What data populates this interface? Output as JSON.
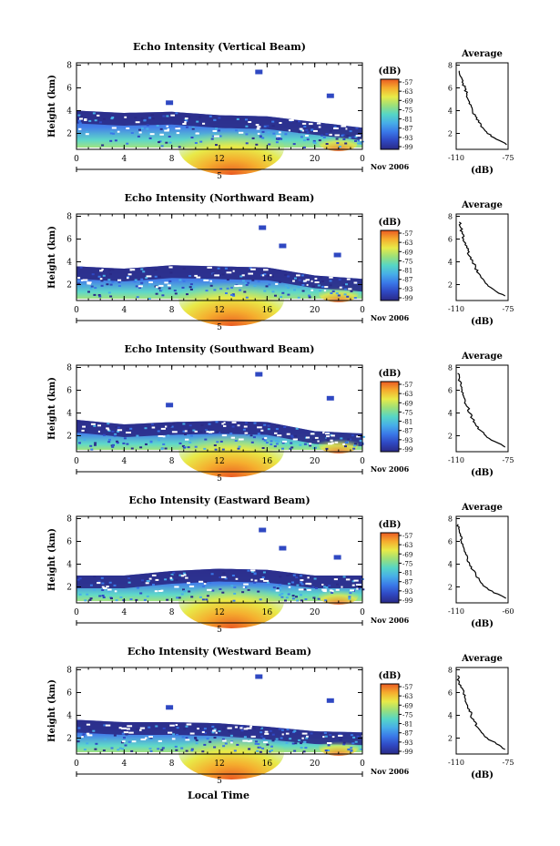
{
  "figure": {
    "xaxis_title": "Local Time",
    "height_label": "Height (km)",
    "units_label": "(dB)",
    "date_tail": "Nov 2006",
    "day_label": "5",
    "colorbar_ticks": [
      "-57",
      "-63",
      "-69",
      "-75",
      "-81",
      "-87",
      "-93",
      "-99"
    ],
    "colorbar_colors": [
      "#2a2a86",
      "#2f48c2",
      "#3a78e8",
      "#47aee8",
      "#56d6c6",
      "#9be07a",
      "#e8ea48",
      "#f5ad2e",
      "#ea5a22"
    ]
  },
  "chart_data": [
    {
      "type": "heatmap",
      "title": "Echo Intensity (Vertical Beam)",
      "ylabel": "Height (km)",
      "x_ticks": [
        "0",
        "4",
        "8",
        "12",
        "16",
        "20",
        "0"
      ],
      "y_ticks": [
        "2",
        "4",
        "6",
        "8"
      ],
      "xlim": [
        0,
        24
      ],
      "ylim": [
        0.6,
        8.2
      ],
      "colorbar": {
        "label": "(dB)",
        "ticks": [
          -57,
          -63,
          -69,
          -75,
          -81,
          -87,
          -93,
          -99
        ]
      },
      "echo_top_km": [
        [
          0,
          4.0
        ],
        [
          4,
          3.8
        ],
        [
          8,
          3.9
        ],
        [
          12,
          3.6
        ],
        [
          16,
          3.5
        ],
        [
          20,
          3.0
        ],
        [
          24,
          2.5
        ]
      ],
      "average_profile": {
        "title": "Average",
        "xlabel": "(dB)",
        "x_ticks": [
          "-110",
          "-75"
        ],
        "xlim": [
          -110,
          -75
        ],
        "y_ticks": [
          "2",
          "4",
          "6",
          "8"
        ],
        "ylim": [
          0.6,
          8.2
        ],
        "height_km": [
          1.0,
          1.5,
          2.0,
          2.5,
          3.0,
          3.5,
          4.0,
          4.5,
          5.0,
          5.5,
          6.0,
          6.5,
          7.0,
          7.5
        ],
        "db": [
          -76,
          -83,
          -89,
          -92,
          -95,
          -97,
          -99,
          -100,
          -102,
          -103,
          -104,
          -106,
          -107,
          -108
        ]
      }
    },
    {
      "type": "heatmap",
      "title": "Echo Intensity (Northward Beam)",
      "ylabel": "Height (km)",
      "x_ticks": [
        "0",
        "4",
        "8",
        "12",
        "16",
        "20",
        "0"
      ],
      "y_ticks": [
        "2",
        "4",
        "6",
        "8"
      ],
      "xlim": [
        0,
        24
      ],
      "ylim": [
        0.6,
        8.2
      ],
      "colorbar": {
        "label": "(dB)",
        "ticks": [
          -57,
          -63,
          -69,
          -75,
          -81,
          -87,
          -93,
          -99
        ]
      },
      "echo_top_km": [
        [
          0,
          3.6
        ],
        [
          4,
          3.4
        ],
        [
          8,
          3.7
        ],
        [
          12,
          3.6
        ],
        [
          16,
          3.5
        ],
        [
          20,
          2.8
        ],
        [
          24,
          2.5
        ]
      ],
      "average_profile": {
        "title": "Average",
        "xlabel": "(dB)",
        "x_ticks": [
          "-110",
          "-75"
        ],
        "xlim": [
          -110,
          -75
        ],
        "y_ticks": [
          "2",
          "4",
          "6",
          "8"
        ],
        "ylim": [
          0.6,
          8.2
        ],
        "height_km": [
          1.0,
          1.5,
          2.0,
          2.5,
          3.0,
          3.5,
          4.0,
          4.5,
          5.0,
          5.5,
          6.0,
          6.5,
          7.0,
          7.5
        ],
        "db": [
          -77,
          -84,
          -89,
          -92,
          -95,
          -97,
          -99,
          -101,
          -102,
          -104,
          -105,
          -106,
          -107,
          -108
        ]
      }
    },
    {
      "type": "heatmap",
      "title": "Echo Intensity (Southward Beam)",
      "ylabel": "Height (km)",
      "x_ticks": [
        "0",
        "4",
        "8",
        "12",
        "16",
        "20",
        "0"
      ],
      "y_ticks": [
        "2",
        "4",
        "6",
        "8"
      ],
      "xlim": [
        0,
        24
      ],
      "ylim": [
        0.6,
        8.2
      ],
      "colorbar": {
        "label": "(dB)",
        "ticks": [
          -57,
          -63,
          -69,
          -75,
          -81,
          -87,
          -93,
          -99
        ]
      },
      "echo_top_km": [
        [
          0,
          3.4
        ],
        [
          4,
          3.0
        ],
        [
          8,
          3.2
        ],
        [
          12,
          3.3
        ],
        [
          16,
          3.2
        ],
        [
          20,
          2.4
        ],
        [
          24,
          2.2
        ]
      ],
      "average_profile": {
        "title": "Average",
        "xlabel": "(dB)",
        "x_ticks": [
          "-110",
          "-75"
        ],
        "xlim": [
          -110,
          -75
        ],
        "y_ticks": [
          "2",
          "4",
          "6",
          "8"
        ],
        "ylim": [
          0.6,
          8.2
        ],
        "height_km": [
          1.0,
          1.5,
          2.0,
          2.5,
          3.0,
          3.5,
          4.0,
          4.5,
          5.0,
          5.5,
          6.0,
          6.5,
          7.0,
          7.5
        ],
        "db": [
          -77,
          -84,
          -90,
          -94,
          -97,
          -99,
          -101,
          -102,
          -104,
          -105,
          -106,
          -107,
          -108,
          -109
        ]
      }
    },
    {
      "type": "heatmap",
      "title": "Echo Intensity (Eastward Beam)",
      "ylabel": "Height (km)",
      "x_ticks": [
        "0",
        "4",
        "8",
        "12",
        "16",
        "20",
        "0"
      ],
      "y_ticks": [
        "2",
        "4",
        "6",
        "8"
      ],
      "xlim": [
        0,
        24
      ],
      "ylim": [
        0.6,
        8.2
      ],
      "colorbar": {
        "label": "(dB)",
        "ticks": [
          -57,
          -63,
          -69,
          -75,
          -81,
          -87,
          -93,
          -99
        ]
      },
      "echo_top_km": [
        [
          0,
          3.0
        ],
        [
          4,
          3.0
        ],
        [
          8,
          3.4
        ],
        [
          12,
          3.6
        ],
        [
          16,
          3.5
        ],
        [
          20,
          3.0
        ],
        [
          24,
          3.0
        ]
      ],
      "average_profile": {
        "title": "Average",
        "xlabel": "(dB)",
        "x_ticks": [
          "-110",
          "-60"
        ],
        "xlim": [
          -110,
          -60
        ],
        "y_ticks": [
          "2",
          "4",
          "6",
          "8"
        ],
        "ylim": [
          0.6,
          8.2
        ],
        "height_km": [
          1.0,
          1.5,
          2.0,
          2.5,
          3.0,
          3.5,
          4.0,
          4.5,
          5.0,
          5.5,
          6.0,
          6.5,
          7.0,
          7.5
        ],
        "db": [
          -62,
          -74,
          -82,
          -87,
          -91,
          -94,
          -97,
          -99,
          -101,
          -103,
          -105,
          -106,
          -107,
          -108
        ]
      }
    },
    {
      "type": "heatmap",
      "title": "Echo Intensity (Westward Beam)",
      "ylabel": "Height (km)",
      "x_ticks": [
        "0",
        "4",
        "8",
        "12",
        "16",
        "20",
        "0"
      ],
      "y_ticks": [
        "2",
        "4",
        "6",
        "8"
      ],
      "xlim": [
        0,
        24
      ],
      "ylim": [
        0.6,
        8.2
      ],
      "colorbar": {
        "label": "(dB)",
        "ticks": [
          -57,
          -63,
          -69,
          -75,
          -81,
          -87,
          -93,
          -99
        ]
      },
      "echo_top_km": [
        [
          0,
          3.6
        ],
        [
          4,
          3.4
        ],
        [
          8,
          3.4
        ],
        [
          12,
          3.3
        ],
        [
          16,
          3.0
        ],
        [
          20,
          2.6
        ],
        [
          24,
          2.5
        ]
      ],
      "average_profile": {
        "title": "Average",
        "xlabel": "(dB)",
        "x_ticks": [
          "-110",
          "-75"
        ],
        "xlim": [
          -110,
          -75
        ],
        "y_ticks": [
          "2",
          "4",
          "6",
          "8"
        ],
        "ylim": [
          0.6,
          8.2
        ],
        "height_km": [
          1.0,
          1.5,
          2.0,
          2.5,
          3.0,
          3.5,
          4.0,
          4.5,
          5.0,
          5.5,
          6.0,
          6.5,
          7.0,
          7.5
        ],
        "db": [
          -77,
          -83,
          -89,
          -93,
          -96,
          -98,
          -100,
          -101,
          -103,
          -104,
          -105,
          -107,
          -108,
          -109
        ]
      }
    }
  ]
}
